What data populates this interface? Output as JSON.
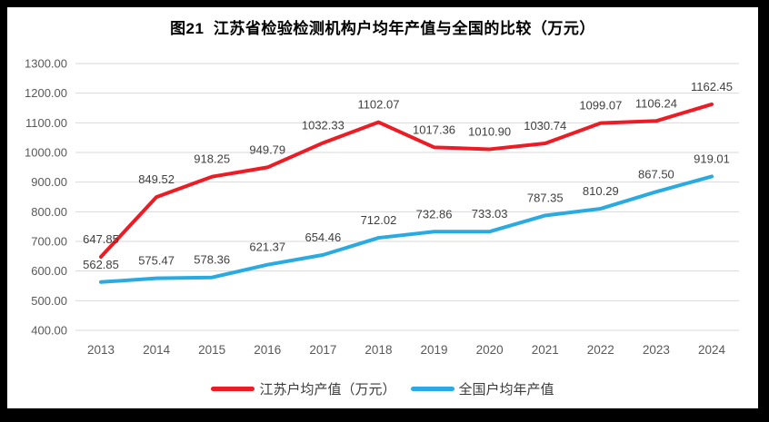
{
  "title": "图21  江苏省检验检测机构户均年产值与全国的比较（万元）",
  "legend": {
    "series1": "江苏户均产值（万元）",
    "series2": "全国户均年产值"
  },
  "colors": {
    "jiangsu_line": "#ED1C24",
    "national_line": "#29ABE2",
    "gridline": "#D9D9D9",
    "axis_text": "#595959",
    "label_text": "#404040",
    "frame": "#000000",
    "background": "#FFFFFF"
  },
  "chart_data": {
    "type": "line",
    "title": "图21  江苏省检验检测机构户均年产值与全国的比较（万元）",
    "categories": [
      "2013",
      "2014",
      "2015",
      "2016",
      "2017",
      "2018",
      "2019",
      "2020",
      "2021",
      "2022",
      "2023",
      "2024"
    ],
    "series": [
      {
        "name": "江苏户均产值（万元）",
        "color": "#ED1C24",
        "values": [
          647.85,
          849.52,
          918.25,
          949.79,
          1032.33,
          1102.07,
          1017.36,
          1010.9,
          1030.74,
          1099.07,
          1106.24,
          1162.45
        ]
      },
      {
        "name": "全国户均年产值",
        "color": "#29ABE2",
        "values": [
          562.85,
          575.47,
          578.36,
          621.37,
          654.46,
          712.02,
          732.86,
          733.03,
          787.35,
          810.29,
          867.5,
          919.01
        ]
      }
    ],
    "xlabel": "",
    "ylabel": "",
    "ylim": [
      400,
      1300
    ],
    "ytick_step": 100,
    "ytick_format": "two-decimals",
    "grid": true,
    "data_labels": true,
    "legend_position": "bottom"
  }
}
